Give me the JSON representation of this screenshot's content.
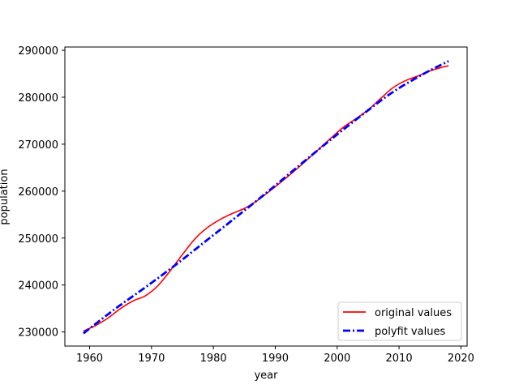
{
  "chart_data": {
    "type": "line",
    "title": "",
    "xlabel": "year",
    "ylabel": "population",
    "xlim": [
      1956,
      2021
    ],
    "ylim": [
      227000,
      290700
    ],
    "x_ticks": [
      1960,
      1970,
      1980,
      1990,
      2000,
      2010,
      2020
    ],
    "y_ticks": [
      230000,
      240000,
      250000,
      260000,
      270000,
      280000,
      290000
    ],
    "grid": false,
    "legend_position": "lower-right",
    "series": [
      {
        "name": "original values",
        "color": "#ff0000",
        "style": "solid",
        "x": [
          1959,
          1961,
          1963,
          1965,
          1967,
          1969,
          1971,
          1973,
          1975,
          1977,
          1979,
          1981,
          1983,
          1985,
          1987,
          1989,
          1991,
          1993,
          1995,
          1997,
          1999,
          2001,
          2003,
          2005,
          2007,
          2009,
          2011,
          2013,
          2015,
          2017,
          2018
        ],
        "y": [
          230200,
          231400,
          233000,
          235000,
          236600,
          237700,
          239800,
          243000,
          246500,
          249800,
          252200,
          253900,
          255200,
          256300,
          257900,
          259900,
          262000,
          264200,
          266500,
          268900,
          271300,
          273600,
          275400,
          277300,
          279700,
          282000,
          283500,
          284500,
          285600,
          286400,
          286700
        ]
      },
      {
        "name": "polyfit  values",
        "color": "#0000ff",
        "style": "dashdot",
        "x": [
          1959,
          1964,
          1969,
          1974,
          1979,
          1984,
          1989,
          1994,
          1999,
          2004,
          2009,
          2014,
          2018
        ],
        "y": [
          229700,
          234800,
          239500,
          244400,
          249600,
          254800,
          260100,
          265600,
          271000,
          276200,
          281100,
          285000,
          287700
        ]
      }
    ]
  }
}
